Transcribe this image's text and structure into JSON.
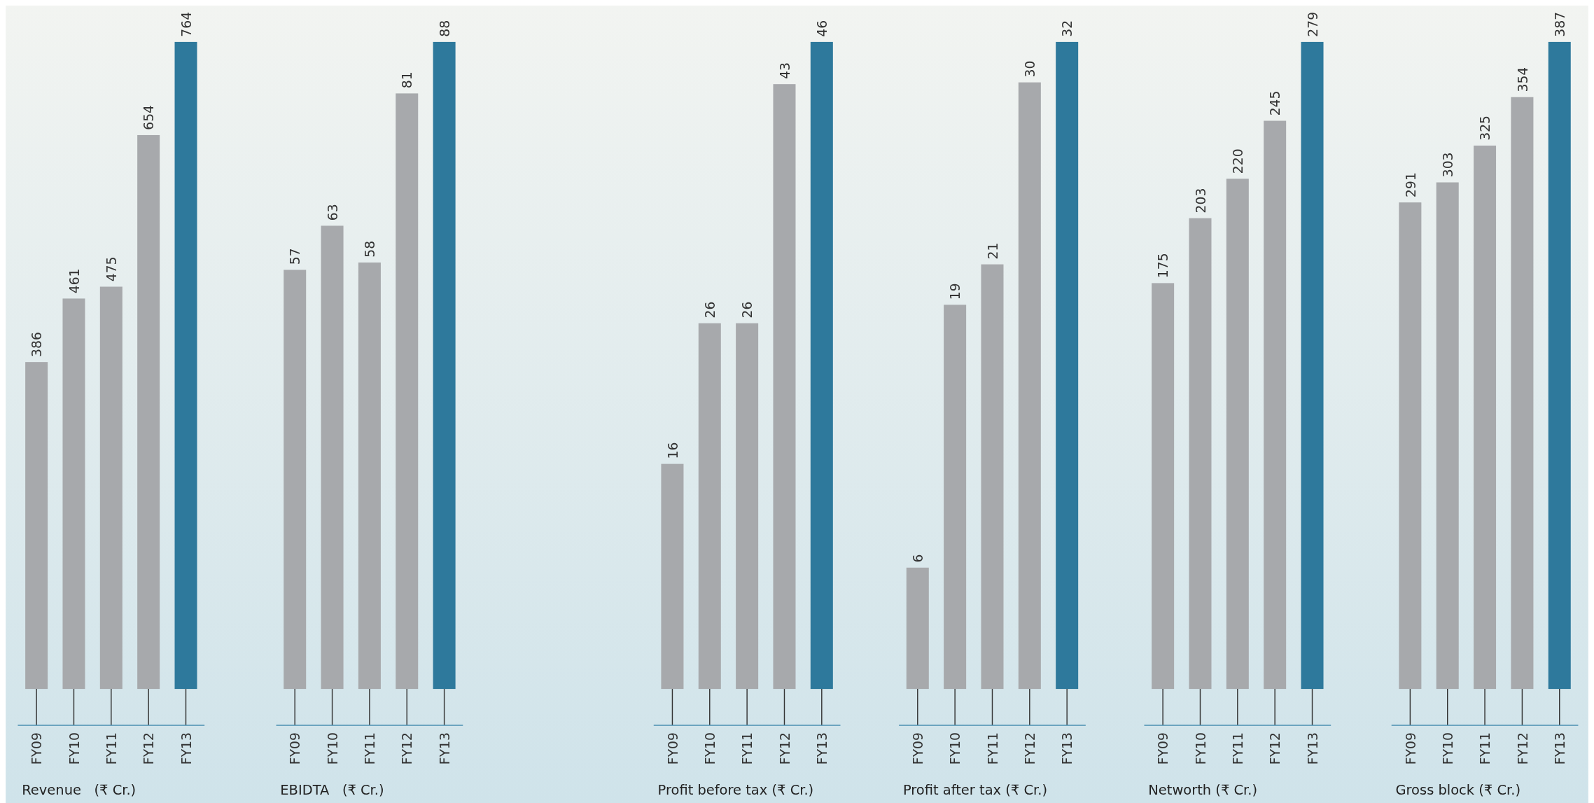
{
  "chart_data": [
    {
      "type": "bar",
      "title": "Revenue   (₹ Cr.)",
      "categories": [
        "FY09",
        "FY10",
        "FY11",
        "FY12",
        "FY13"
      ],
      "values": [
        386,
        461,
        475,
        654,
        764
      ],
      "colors": [
        "#a7a9ac",
        "#a7a9ac",
        "#a7a9ac",
        "#a7a9ac",
        "#2e799c"
      ],
      "data_labels": true
    },
    {
      "type": "bar",
      "title": "EBIDTA   (₹ Cr.)",
      "categories": [
        "FY09",
        "FY10",
        "FY11",
        "FY12",
        "FY13"
      ],
      "values": [
        57,
        63,
        58,
        81,
        88
      ],
      "colors": [
        "#a7a9ac",
        "#a7a9ac",
        "#a7a9ac",
        "#a7a9ac",
        "#2e799c"
      ],
      "data_labels": true
    },
    {
      "type": "bar",
      "title": "Profit before tax (₹ Cr.)",
      "categories": [
        "FY09",
        "FY10",
        "FY11",
        "FY12",
        "FY13"
      ],
      "values": [
        16,
        26,
        26,
        43,
        46
      ],
      "colors": [
        "#a7a9ac",
        "#a7a9ac",
        "#a7a9ac",
        "#a7a9ac",
        "#2e799c"
      ],
      "data_labels": true
    },
    {
      "type": "bar",
      "title": "Profit after tax (₹ Cr.)",
      "categories": [
        "FY09",
        "FY10",
        "FY11",
        "FY12",
        "FY13"
      ],
      "values": [
        6,
        19,
        21,
        30,
        32
      ],
      "colors": [
        "#a7a9ac",
        "#a7a9ac",
        "#a7a9ac",
        "#a7a9ac",
        "#2e799c"
      ],
      "data_labels": true
    },
    {
      "type": "bar",
      "title": "Networth (₹ Cr.)",
      "categories": [
        "FY09",
        "FY10",
        "FY11",
        "FY12",
        "FY13"
      ],
      "values": [
        175,
        203,
        220,
        245,
        279
      ],
      "colors": [
        "#a7a9ac",
        "#a7a9ac",
        "#a7a9ac",
        "#a7a9ac",
        "#2e799c"
      ],
      "data_labels": true
    },
    {
      "type": "bar",
      "title": "Gross block (₹ Cr.)",
      "categories": [
        "FY09",
        "FY10",
        "FY11",
        "FY12",
        "FY13"
      ],
      "values": [
        291,
        303,
        325,
        354,
        387
      ],
      "colors": [
        "#a7a9ac",
        "#a7a9ac",
        "#a7a9ac",
        "#a7a9ac",
        "#2e799c"
      ],
      "data_labels": true
    }
  ]
}
